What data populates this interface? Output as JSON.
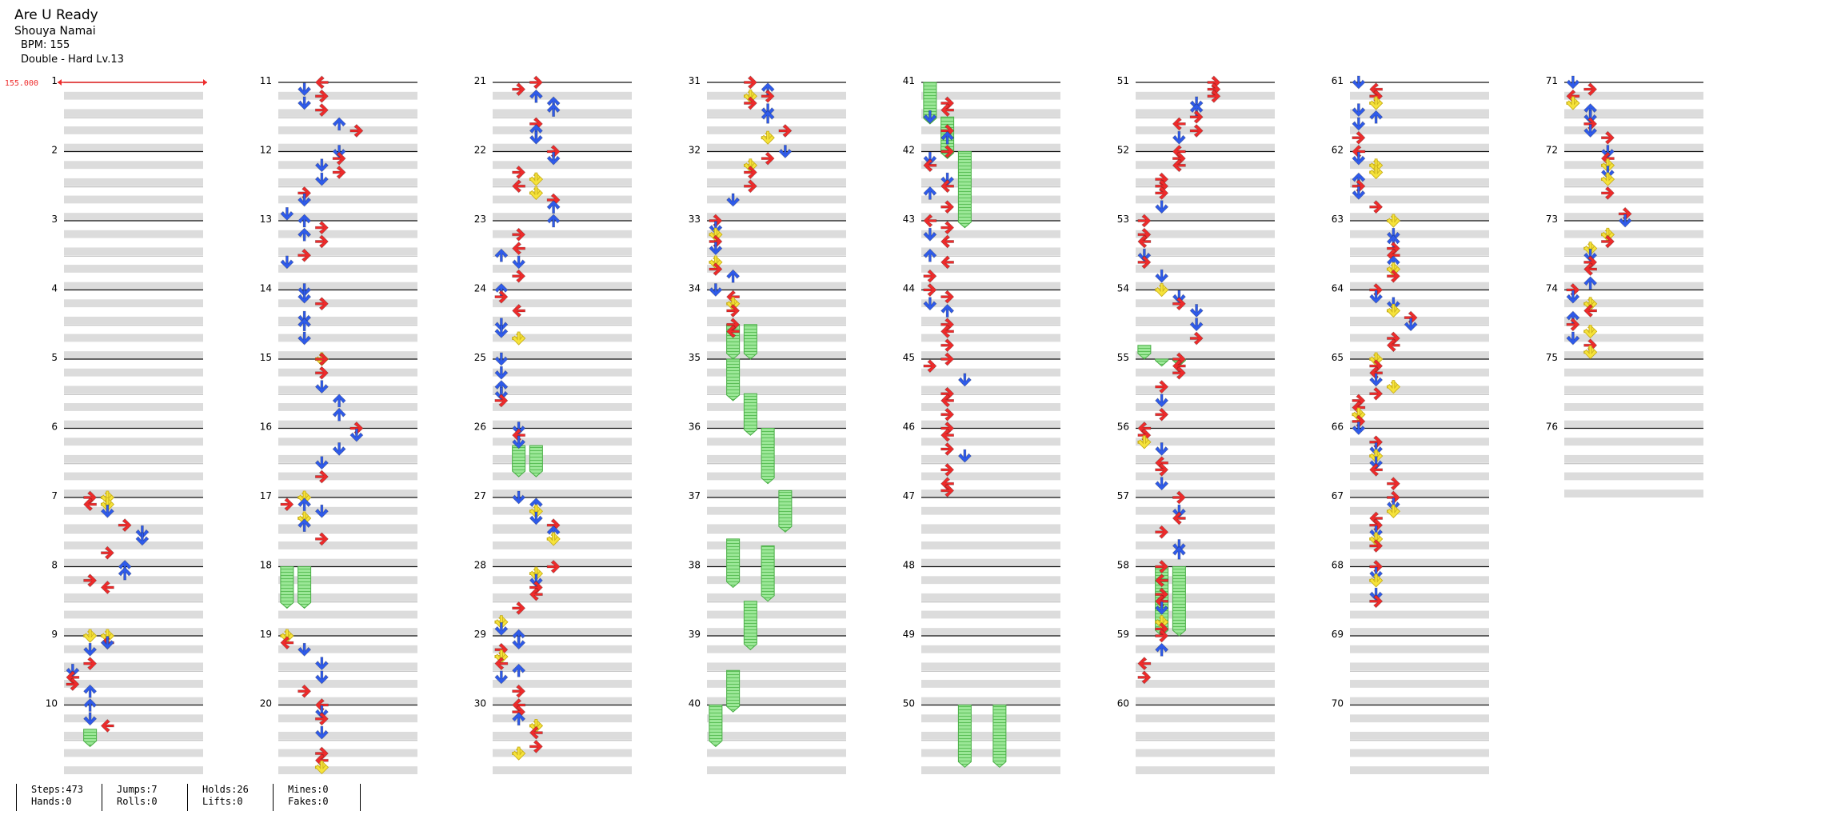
{
  "song": {
    "title": "Are U Ready",
    "artist": "Shouya Namai",
    "bpm": "BPM: 155",
    "difficulty": "Double - Hard  Lv.13"
  },
  "bpm_marker": {
    "label": "155.000",
    "value": 155
  },
  "layout": {
    "columns": 8,
    "measures_per_column": 10,
    "total_measures": 76,
    "lanes": 8,
    "rows_per_measure": 8
  },
  "colors": {
    "left": "#ee2b2b",
    "down": "#2f5bea",
    "up": "#2f5bea",
    "right": "#ee2b2b",
    "yellow": "#f6e33a",
    "hold": "#8fe38c",
    "band": "#dcdcdc"
  },
  "notes": [
    [
      7.0,
      2,
      "Y"
    ],
    [
      7.0,
      1,
      "R"
    ],
    [
      7.1,
      1,
      "L"
    ],
    [
      7.1,
      2,
      "Y"
    ],
    [
      7.2,
      2,
      "D"
    ],
    [
      7.4,
      3,
      "R"
    ],
    [
      7.5,
      4,
      "D"
    ],
    [
      7.6,
      4,
      "D"
    ],
    [
      7.8,
      2,
      "R"
    ],
    [
      8.0,
      3,
      "U"
    ],
    [
      8.1,
      3,
      "U"
    ],
    [
      8.2,
      1,
      "R"
    ],
    [
      8.3,
      2,
      "L"
    ],
    [
      9.0,
      2,
      "Y"
    ],
    [
      9.0,
      1,
      "Y"
    ],
    [
      9.1,
      2,
      "L"
    ],
    [
      9.1,
      2,
      "D"
    ],
    [
      9.2,
      1,
      "D"
    ],
    [
      9.4,
      1,
      "R"
    ],
    [
      9.5,
      0,
      "D"
    ],
    [
      9.6,
      0,
      "L"
    ],
    [
      9.7,
      0,
      "R"
    ],
    [
      9.8,
      1,
      "U"
    ],
    [
      10.0,
      1,
      "U"
    ],
    [
      10.2,
      1,
      "D"
    ],
    [
      10.3,
      2,
      "L"
    ],
    [
      11.0,
      2,
      "L"
    ],
    [
      11.1,
      1,
      "D"
    ],
    [
      11.2,
      2,
      "R"
    ],
    [
      11.3,
      1,
      "D"
    ],
    [
      11.4,
      2,
      "R"
    ],
    [
      11.6,
      3,
      "U"
    ],
    [
      11.7,
      4,
      "R"
    ],
    [
      12.0,
      3,
      "D"
    ],
    [
      12.1,
      3,
      "R"
    ],
    [
      12.2,
      2,
      "D"
    ],
    [
      12.3,
      3,
      "R"
    ],
    [
      12.4,
      2,
      "D"
    ],
    [
      12.6,
      1,
      "R"
    ],
    [
      12.7,
      1,
      "D"
    ],
    [
      12.9,
      0,
      "D"
    ],
    [
      13.0,
      1,
      "U"
    ],
    [
      13.1,
      2,
      "R"
    ],
    [
      13.2,
      1,
      "U"
    ],
    [
      13.3,
      2,
      "R"
    ],
    [
      13.5,
      1,
      "R"
    ],
    [
      13.6,
      0,
      "D"
    ],
    [
      14.0,
      1,
      "D"
    ],
    [
      14.1,
      1,
      "D"
    ],
    [
      14.2,
      2,
      "R"
    ],
    [
      14.4,
      1,
      "D"
    ],
    [
      14.5,
      1,
      "U"
    ],
    [
      14.7,
      1,
      "D"
    ],
    [
      15.0,
      2,
      "Y"
    ],
    [
      15.0,
      2,
      "R"
    ],
    [
      15.2,
      2,
      "R"
    ],
    [
      15.4,
      2,
      "D"
    ],
    [
      15.6,
      3,
      "U"
    ],
    [
      15.8,
      3,
      "U"
    ],
    [
      16.0,
      4,
      "R"
    ],
    [
      16.1,
      4,
      "D"
    ],
    [
      16.3,
      3,
      "D"
    ],
    [
      16.5,
      2,
      "D"
    ],
    [
      16.7,
      2,
      "R"
    ],
    [
      17.0,
      1,
      "Y"
    ],
    [
      17.1,
      0,
      "R"
    ],
    [
      17.1,
      1,
      "U"
    ],
    [
      17.2,
      2,
      "D"
    ],
    [
      17.3,
      1,
      "Y"
    ],
    [
      17.4,
      1,
      "U"
    ],
    [
      17.6,
      2,
      "R"
    ],
    [
      19.0,
      0,
      "R"
    ],
    [
      19.0,
      0,
      "Y"
    ],
    [
      19.1,
      0,
      "L"
    ],
    [
      19.2,
      1,
      "D"
    ],
    [
      19.4,
      2,
      "D"
    ],
    [
      19.6,
      2,
      "D"
    ],
    [
      19.8,
      1,
      "R"
    ],
    [
      20.0,
      2,
      "L"
    ],
    [
      20.1,
      2,
      "D"
    ],
    [
      20.2,
      2,
      "R"
    ],
    [
      20.4,
      2,
      "D"
    ],
    [
      20.7,
      2,
      "R"
    ],
    [
      20.8,
      2,
      "L"
    ],
    [
      20.9,
      2,
      "Y"
    ],
    [
      21.0,
      2,
      "R"
    ],
    [
      21.1,
      1,
      "R"
    ],
    [
      21.2,
      2,
      "U"
    ],
    [
      21.3,
      3,
      "U"
    ],
    [
      21.4,
      3,
      "U"
    ],
    [
      21.6,
      2,
      "R"
    ],
    [
      21.7,
      2,
      "U"
    ],
    [
      21.8,
      2,
      "D"
    ],
    [
      22.0,
      3,
      "R"
    ],
    [
      22.1,
      3,
      "D"
    ],
    [
      22.3,
      1,
      "R"
    ],
    [
      22.4,
      2,
      "Y"
    ],
    [
      22.5,
      1,
      "L"
    ],
    [
      22.6,
      2,
      "Y"
    ],
    [
      22.7,
      3,
      "R"
    ],
    [
      22.8,
      3,
      "U"
    ],
    [
      23.0,
      3,
      "U"
    ],
    [
      23.2,
      1,
      "R"
    ],
    [
      23.4,
      1,
      "L"
    ],
    [
      23.5,
      0,
      "U"
    ],
    [
      23.6,
      1,
      "D"
    ],
    [
      23.8,
      1,
      "R"
    ],
    [
      24.0,
      0,
      "U"
    ],
    [
      24.1,
      0,
      "R"
    ],
    [
      24.3,
      1,
      "L"
    ],
    [
      24.5,
      0,
      "D"
    ],
    [
      24.6,
      0,
      "D"
    ],
    [
      24.7,
      1,
      "Y"
    ],
    [
      25.0,
      0,
      "D"
    ],
    [
      25.2,
      0,
      "D"
    ],
    [
      25.4,
      0,
      "U"
    ],
    [
      25.5,
      0,
      "D"
    ],
    [
      25.6,
      0,
      "R"
    ],
    [
      26.0,
      1,
      "D"
    ],
    [
      26.1,
      1,
      "L"
    ],
    [
      26.2,
      1,
      "D"
    ],
    [
      27.0,
      1,
      "D"
    ],
    [
      27.1,
      2,
      "U"
    ],
    [
      27.2,
      2,
      "Y"
    ],
    [
      27.3,
      2,
      "D"
    ],
    [
      27.4,
      3,
      "R"
    ],
    [
      27.5,
      3,
      "U"
    ],
    [
      27.6,
      3,
      "Y"
    ],
    [
      28.0,
      3,
      "R"
    ],
    [
      28.1,
      2,
      "Y"
    ],
    [
      28.2,
      2,
      "D"
    ],
    [
      28.3,
      2,
      "R"
    ],
    [
      28.4,
      2,
      "L"
    ],
    [
      28.6,
      1,
      "R"
    ],
    [
      28.8,
      0,
      "Y"
    ],
    [
      28.9,
      0,
      "D"
    ],
    [
      29.0,
      1,
      "U"
    ],
    [
      29.1,
      1,
      "D"
    ],
    [
      29.2,
      0,
      "R"
    ],
    [
      29.3,
      0,
      "Y"
    ],
    [
      29.4,
      0,
      "L"
    ],
    [
      29.5,
      1,
      "U"
    ],
    [
      29.6,
      0,
      "D"
    ],
    [
      29.8,
      1,
      "R"
    ],
    [
      30.0,
      1,
      "L"
    ],
    [
      30.1,
      1,
      "R"
    ],
    [
      30.2,
      1,
      "U"
    ],
    [
      30.3,
      2,
      "Y"
    ],
    [
      30.4,
      2,
      "L"
    ],
    [
      30.6,
      2,
      "R"
    ],
    [
      30.7,
      1,
      "Y"
    ],
    [
      31.0,
      2,
      "R"
    ],
    [
      31.1,
      3,
      "U"
    ],
    [
      31.2,
      2,
      "Y"
    ],
    [
      31.2,
      3,
      "R"
    ],
    [
      31.3,
      2,
      "R"
    ],
    [
      31.4,
      3,
      "D"
    ],
    [
      31.5,
      3,
      "U"
    ],
    [
      31.7,
      4,
      "R"
    ],
    [
      31.8,
      3,
      "Y"
    ],
    [
      32.0,
      4,
      "D"
    ],
    [
      32.1,
      3,
      "R"
    ],
    [
      32.2,
      2,
      "Y"
    ],
    [
      32.3,
      2,
      "R"
    ],
    [
      32.5,
      2,
      "R"
    ],
    [
      32.7,
      1,
      "D"
    ],
    [
      33.0,
      0,
      "R"
    ],
    [
      33.1,
      0,
      "D"
    ],
    [
      33.2,
      0,
      "Y"
    ],
    [
      33.3,
      0,
      "R"
    ],
    [
      33.4,
      0,
      "D"
    ],
    [
      33.6,
      0,
      "Y"
    ],
    [
      33.7,
      0,
      "R"
    ],
    [
      33.8,
      1,
      "U"
    ],
    [
      34.0,
      0,
      "D"
    ],
    [
      34.1,
      1,
      "L"
    ],
    [
      34.2,
      1,
      "Y"
    ],
    [
      34.3,
      1,
      "R"
    ],
    [
      34.5,
      1,
      "R"
    ],
    [
      34.6,
      1,
      "L"
    ],
    [
      41.3,
      1,
      "R"
    ],
    [
      41.4,
      1,
      "L"
    ],
    [
      41.5,
      0,
      "D"
    ],
    [
      41.7,
      1,
      "R"
    ],
    [
      41.8,
      1,
      "U"
    ],
    [
      42.0,
      1,
      "R"
    ],
    [
      42.1,
      0,
      "D"
    ],
    [
      42.2,
      0,
      "L"
    ],
    [
      42.4,
      1,
      "D"
    ],
    [
      42.5,
      1,
      "L"
    ],
    [
      42.6,
      0,
      "U"
    ],
    [
      42.8,
      1,
      "R"
    ],
    [
      43.0,
      0,
      "L"
    ],
    [
      43.1,
      1,
      "R"
    ],
    [
      43.2,
      0,
      "D"
    ],
    [
      43.3,
      1,
      "L"
    ],
    [
      43.5,
      0,
      "U"
    ],
    [
      43.6,
      1,
      "L"
    ],
    [
      43.8,
      0,
      "R"
    ],
    [
      44.0,
      0,
      "R"
    ],
    [
      44.1,
      1,
      "R"
    ],
    [
      44.2,
      0,
      "D"
    ],
    [
      44.3,
      1,
      "U"
    ],
    [
      44.5,
      1,
      "R"
    ],
    [
      44.6,
      1,
      "L"
    ],
    [
      44.8,
      1,
      "R"
    ],
    [
      45.0,
      1,
      "R"
    ],
    [
      45.1,
      0,
      "R"
    ],
    [
      45.3,
      2,
      "D"
    ],
    [
      45.5,
      1,
      "R"
    ],
    [
      45.6,
      1,
      "L"
    ],
    [
      45.8,
      1,
      "R"
    ],
    [
      46.0,
      1,
      "R"
    ],
    [
      46.1,
      1,
      "L"
    ],
    [
      46.3,
      1,
      "R"
    ],
    [
      46.4,
      2,
      "D"
    ],
    [
      46.6,
      1,
      "R"
    ],
    [
      46.8,
      1,
      "L"
    ],
    [
      46.9,
      1,
      "R"
    ],
    [
      51.0,
      4,
      "R"
    ],
    [
      51.1,
      4,
      "R"
    ],
    [
      51.2,
      4,
      "R"
    ],
    [
      51.3,
      3,
      "D"
    ],
    [
      51.4,
      3,
      "U"
    ],
    [
      51.5,
      3,
      "R"
    ],
    [
      51.6,
      2,
      "L"
    ],
    [
      51.7,
      3,
      "R"
    ],
    [
      51.8,
      2,
      "D"
    ],
    [
      52.0,
      2,
      "L"
    ],
    [
      52.1,
      2,
      "R"
    ],
    [
      52.2,
      2,
      "L"
    ],
    [
      52.4,
      1,
      "R"
    ],
    [
      52.5,
      1,
      "R"
    ],
    [
      52.6,
      1,
      "R"
    ],
    [
      52.8,
      1,
      "D"
    ],
    [
      53.0,
      0,
      "R"
    ],
    [
      53.2,
      0,
      "R"
    ],
    [
      53.3,
      0,
      "L"
    ],
    [
      53.5,
      0,
      "D"
    ],
    [
      53.6,
      0,
      "R"
    ],
    [
      53.8,
      1,
      "D"
    ],
    [
      54.0,
      1,
      "Y"
    ],
    [
      54.1,
      2,
      "D"
    ],
    [
      54.2,
      2,
      "R"
    ],
    [
      54.3,
      3,
      "D"
    ],
    [
      54.5,
      3,
      "D"
    ],
    [
      54.7,
      3,
      "R"
    ],
    [
      55.0,
      2,
      "R"
    ],
    [
      55.1,
      2,
      "L"
    ],
    [
      55.2,
      2,
      "R"
    ],
    [
      55.4,
      1,
      "R"
    ],
    [
      55.6,
      1,
      "D"
    ],
    [
      55.8,
      1,
      "R"
    ],
    [
      56.0,
      0,
      "L"
    ],
    [
      56.1,
      0,
      "R"
    ],
    [
      56.2,
      0,
      "Y"
    ],
    [
      56.3,
      1,
      "D"
    ],
    [
      56.5,
      1,
      "L"
    ],
    [
      56.6,
      1,
      "R"
    ],
    [
      56.8,
      1,
      "D"
    ],
    [
      57.0,
      2,
      "R"
    ],
    [
      57.2,
      2,
      "D"
    ],
    [
      57.3,
      2,
      "L"
    ],
    [
      57.5,
      1,
      "R"
    ],
    [
      57.7,
      2,
      "D"
    ],
    [
      57.8,
      2,
      "U"
    ],
    [
      58.0,
      1,
      "R"
    ],
    [
      58.2,
      1,
      "L"
    ],
    [
      58.4,
      1,
      "R"
    ],
    [
      58.5,
      1,
      "L"
    ],
    [
      58.6,
      1,
      "D"
    ],
    [
      58.8,
      1,
      "Y"
    ],
    [
      58.9,
      1,
      "R"
    ],
    [
      59.0,
      1,
      "R"
    ],
    [
      59.2,
      1,
      "U"
    ],
    [
      59.4,
      0,
      "L"
    ],
    [
      59.6,
      0,
      "R"
    ],
    [
      61.0,
      0,
      "D"
    ],
    [
      61.1,
      1,
      "L"
    ],
    [
      61.2,
      1,
      "R"
    ],
    [
      61.3,
      1,
      "Y"
    ],
    [
      61.4,
      0,
      "D"
    ],
    [
      61.5,
      1,
      "U"
    ],
    [
      61.6,
      0,
      "D"
    ],
    [
      61.8,
      0,
      "R"
    ],
    [
      62.0,
      0,
      "L"
    ],
    [
      62.1,
      0,
      "D"
    ],
    [
      62.2,
      1,
      "Y"
    ],
    [
      62.3,
      1,
      "Y"
    ],
    [
      62.4,
      0,
      "U"
    ],
    [
      62.5,
      0,
      "R"
    ],
    [
      62.6,
      0,
      "D"
    ],
    [
      62.8,
      1,
      "R"
    ],
    [
      63.0,
      2,
      "Y"
    ],
    [
      63.2,
      2,
      "D"
    ],
    [
      63.3,
      2,
      "U"
    ],
    [
      63.4,
      2,
      "R"
    ],
    [
      63.5,
      2,
      "L"
    ],
    [
      63.6,
      2,
      "U"
    ],
    [
      63.7,
      2,
      "Y"
    ],
    [
      63.8,
      2,
      "R"
    ],
    [
      64.0,
      1,
      "R"
    ],
    [
      64.1,
      1,
      "D"
    ],
    [
      64.2,
      2,
      "D"
    ],
    [
      64.3,
      2,
      "Y"
    ],
    [
      64.4,
      3,
      "R"
    ],
    [
      64.5,
      3,
      "D"
    ],
    [
      64.7,
      2,
      "R"
    ],
    [
      64.8,
      2,
      "L"
    ],
    [
      65.0,
      1,
      "Y"
    ],
    [
      65.1,
      1,
      "R"
    ],
    [
      65.2,
      1,
      "L"
    ],
    [
      65.3,
      1,
      "D"
    ],
    [
      65.4,
      2,
      "Y"
    ],
    [
      65.5,
      1,
      "R"
    ],
    [
      65.6,
      0,
      "R"
    ],
    [
      65.7,
      0,
      "L"
    ],
    [
      65.8,
      0,
      "Y"
    ],
    [
      65.9,
      0,
      "R"
    ],
    [
      66.0,
      0,
      "D"
    ],
    [
      66.2,
      1,
      "R"
    ],
    [
      66.3,
      1,
      "D"
    ],
    [
      66.4,
      1,
      "Y"
    ],
    [
      66.5,
      1,
      "D"
    ],
    [
      66.6,
      1,
      "L"
    ],
    [
      66.8,
      2,
      "R"
    ],
    [
      67.0,
      2,
      "R"
    ],
    [
      67.1,
      2,
      "D"
    ],
    [
      67.2,
      2,
      "Y"
    ],
    [
      67.3,
      1,
      "L"
    ],
    [
      67.4,
      1,
      "R"
    ],
    [
      67.5,
      1,
      "D"
    ],
    [
      67.6,
      1,
      "Y"
    ],
    [
      67.7,
      1,
      "R"
    ],
    [
      68.0,
      1,
      "R"
    ],
    [
      68.1,
      1,
      "D"
    ],
    [
      68.2,
      1,
      "Y"
    ],
    [
      68.4,
      1,
      "D"
    ],
    [
      68.5,
      1,
      "R"
    ],
    [
      71.0,
      0,
      "D"
    ],
    [
      71.1,
      1,
      "R"
    ],
    [
      71.2,
      0,
      "L"
    ],
    [
      71.3,
      0,
      "Y"
    ],
    [
      71.4,
      1,
      "U"
    ],
    [
      71.5,
      1,
      "D"
    ],
    [
      71.6,
      1,
      "R"
    ],
    [
      71.7,
      1,
      "D"
    ],
    [
      71.8,
      2,
      "R"
    ],
    [
      72.0,
      2,
      "D"
    ],
    [
      72.1,
      2,
      "L"
    ],
    [
      72.2,
      2,
      "Y"
    ],
    [
      72.3,
      2,
      "D"
    ],
    [
      72.4,
      2,
      "Y"
    ],
    [
      72.6,
      2,
      "R"
    ],
    [
      72.9,
      3,
      "R"
    ],
    [
      73.0,
      3,
      "D"
    ],
    [
      73.2,
      2,
      "Y"
    ],
    [
      73.3,
      2,
      "R"
    ],
    [
      73.4,
      1,
      "Y"
    ],
    [
      73.5,
      1,
      "D"
    ],
    [
      73.6,
      1,
      "R"
    ],
    [
      73.7,
      1,
      "L"
    ],
    [
      73.9,
      1,
      "U"
    ],
    [
      74.0,
      0,
      "R"
    ],
    [
      74.1,
      0,
      "D"
    ],
    [
      74.2,
      1,
      "Y"
    ],
    [
      74.3,
      1,
      "L"
    ],
    [
      74.4,
      0,
      "U"
    ],
    [
      74.5,
      0,
      "R"
    ],
    [
      74.6,
      1,
      "Y"
    ],
    [
      74.7,
      0,
      "D"
    ],
    [
      74.8,
      1,
      "R"
    ],
    [
      74.9,
      1,
      "Y"
    ]
  ],
  "holds": [
    [
      10.35,
      10.6,
      1
    ],
    [
      18.0,
      18.6,
      0
    ],
    [
      18.0,
      18.6,
      1
    ],
    [
      26.25,
      26.7,
      1
    ],
    [
      26.25,
      26.7,
      2
    ],
    [
      34.5,
      35.0,
      1
    ],
    [
      34.5,
      35.0,
      2
    ],
    [
      35.0,
      35.6,
      1
    ],
    [
      35.5,
      36.1,
      2
    ],
    [
      36.0,
      36.8,
      3
    ],
    [
      36.9,
      37.5,
      4
    ],
    [
      37.6,
      38.3,
      1
    ],
    [
      37.7,
      38.5,
      3
    ],
    [
      38.5,
      39.2,
      2
    ],
    [
      39.5,
      40.1,
      1
    ],
    [
      40.0,
      40.6,
      0
    ],
    [
      41.0,
      41.6,
      0
    ],
    [
      41.5,
      42.1,
      1
    ],
    [
      42.0,
      43.1,
      2
    ],
    [
      50.0,
      50.9,
      2
    ],
    [
      50.0,
      50.9,
      4
    ],
    [
      54.8,
      55.0,
      0
    ],
    [
      55.0,
      55.1,
      1
    ],
    [
      55.0,
      55.1,
      2
    ],
    [
      58.0,
      59.0,
      1
    ],
    [
      58.0,
      59.0,
      2
    ]
  ],
  "stats": [
    {
      "line1": "Steps:473",
      "line2": "Hands:0"
    },
    {
      "line1": "Jumps:7",
      "line2": "Rolls:0"
    },
    {
      "line1": "Holds:26",
      "line2": "Lifts:0"
    },
    {
      "line1": "Mines:0",
      "line2": "Fakes:0"
    }
  ]
}
